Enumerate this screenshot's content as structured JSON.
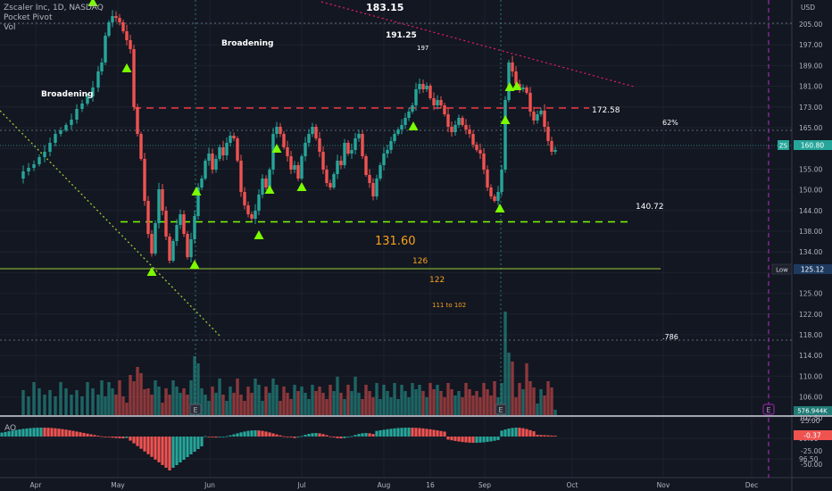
{
  "legend": {
    "symbol": "Zscaler Inc, 1D, NASDAQ",
    "indicator": "Pocket Pivot",
    "volume": "Vol"
  },
  "ao_label": "AO",
  "chart_data": {
    "type": "candlestick",
    "price_axis_ticks": [
      205.0,
      197.0,
      189.0,
      181.0,
      173.0,
      165.0,
      160.0,
      155.0,
      150.0,
      144.0,
      138.0,
      134.0,
      130.0,
      125.0,
      122.0,
      118.0,
      114.0,
      110.0,
      106.0,
      102.5,
      99.0,
      96.5
    ],
    "price_axis_top_label": "USD",
    "ao_axis_ticks": [
      25.0,
      0.0,
      -25.0,
      -50.0
    ],
    "time_axis_labels": [
      "Apr",
      "May",
      "Jun",
      "Jul",
      "Aug",
      "16",
      "Sep",
      "Oct",
      "Nov",
      "Dec"
    ],
    "last_price": {
      "symbol": "ZS",
      "value": "160.80",
      "color": "#26a69a"
    },
    "low_marker": {
      "label": "Low",
      "value": "125.12"
    },
    "volume_tag": "576.944K",
    "ao_value": "-0.37",
    "annotations": [
      {
        "text": "183.15",
        "color": "#ffffff"
      },
      {
        "text": "191.25",
        "color": "#ffffff"
      },
      {
        "text": "197",
        "color": "#ffffff"
      },
      {
        "text": "Broadening",
        "color": "#ffffff"
      },
      {
        "text": "Broadening",
        "color": "#ffffff"
      },
      {
        "text": "172.58",
        "color": "#ffffff"
      },
      {
        "text": "62%",
        "color": "#ffffff"
      },
      {
        "text": "140.72",
        "color": "#ffffff"
      },
      {
        "text": "131.60",
        "color": "#f7a21b"
      },
      {
        "text": "126",
        "color": "#f7a21b"
      },
      {
        "text": "122",
        "color": "#f7a21b"
      },
      {
        "text": "111 to 102",
        "color": "#f7a21b"
      },
      {
        "text": ".786",
        "color": "#ffffff"
      }
    ],
    "levels": [
      {
        "price": 172.58,
        "style": "dashed",
        "color": "#f23645"
      },
      {
        "price": 140.72,
        "style": "dashed",
        "color": "#7cfc00"
      },
      {
        "price": 125.12,
        "style": "solid",
        "color": "#9acd32"
      }
    ],
    "earnings_markers": [
      "E",
      "E",
      "E"
    ],
    "colors": {
      "up": "#26a69a",
      "down": "#ef5350",
      "pivot": "#7cfc00"
    }
  }
}
